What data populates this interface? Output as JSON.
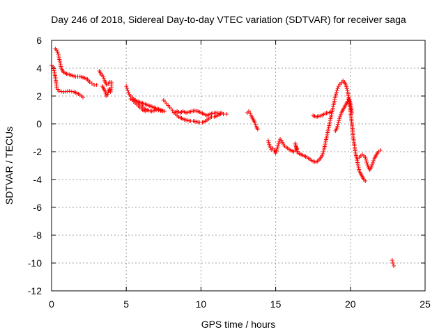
{
  "chart_data": {
    "type": "scatter",
    "title": "Day 246 of 2018, Sidereal Day-to-day VTEC variation (SDTVAR) for receiver saga",
    "xlabel": "GPS time / hours",
    "ylabel": "SDTVAR / TECUs",
    "xlim": [
      0,
      25
    ],
    "ylim": [
      -12,
      6
    ],
    "xticks": [
      0,
      5,
      10,
      15,
      20,
      25
    ],
    "yticks": [
      -12,
      -10,
      -8,
      -6,
      -4,
      -2,
      0,
      2,
      4,
      6
    ],
    "grid": true,
    "marker": "+",
    "color": "#ff0000",
    "series": [
      {
        "name": "SDTVAR",
        "segments": [
          [
            [
              0.0,
              4.2
            ],
            [
              0.1,
              4.1
            ],
            [
              0.2,
              3.7
            ],
            [
              0.3,
              3.0
            ],
            [
              0.35,
              2.6
            ],
            [
              0.5,
              2.35
            ],
            [
              0.8,
              2.3
            ],
            [
              1.2,
              2.35
            ],
            [
              1.5,
              2.3
            ],
            [
              1.8,
              2.15
            ],
            [
              2.0,
              2.0
            ],
            [
              2.1,
              1.9
            ]
          ],
          [
            [
              0.25,
              5.4
            ],
            [
              0.35,
              5.3
            ],
            [
              0.45,
              5.0
            ],
            [
              0.55,
              4.5
            ],
            [
              0.65,
              4.0
            ],
            [
              0.8,
              3.7
            ],
            [
              1.0,
              3.6
            ],
            [
              1.3,
              3.5
            ],
            [
              1.6,
              3.4
            ],
            [
              1.9,
              3.4
            ],
            [
              2.2,
              3.3
            ],
            [
              2.4,
              3.2
            ],
            [
              2.55,
              3.0
            ],
            [
              2.7,
              2.9
            ],
            [
              2.85,
              2.8
            ],
            [
              3.0,
              2.8
            ]
          ],
          [
            [
              3.2,
              3.8
            ],
            [
              3.3,
              3.6
            ],
            [
              3.45,
              3.4
            ],
            [
              3.55,
              3.1
            ],
            [
              3.7,
              2.8
            ],
            [
              3.8,
              2.9
            ],
            [
              3.9,
              3.0
            ],
            [
              4.0,
              3.0
            ],
            [
              4.0,
              2.6
            ],
            [
              3.95,
              2.3
            ],
            [
              3.85,
              2.5
            ],
            [
              3.75,
              2.1
            ],
            [
              3.65,
              2.0
            ],
            [
              3.6,
              2.3
            ],
            [
              3.5,
              2.5
            ],
            [
              3.4,
              2.7
            ]
          ],
          [
            [
              5.0,
              2.7
            ],
            [
              5.1,
              2.4
            ],
            [
              5.2,
              2.1
            ],
            [
              5.4,
              1.9
            ],
            [
              5.6,
              1.7
            ],
            [
              5.8,
              1.5
            ],
            [
              6.0,
              1.3
            ],
            [
              6.2,
              1.1
            ],
            [
              6.4,
              1.0
            ],
            [
              6.7,
              0.9
            ],
            [
              7.0,
              1.0
            ],
            [
              7.3,
              0.95
            ],
            [
              7.55,
              0.9
            ],
            [
              5.3,
              1.8
            ],
            [
              5.5,
              1.6
            ],
            [
              5.7,
              1.4
            ],
            [
              5.9,
              1.2
            ],
            [
              6.1,
              1.0
            ],
            [
              6.3,
              0.9
            ]
          ],
          [
            [
              7.5,
              1.7
            ],
            [
              7.7,
              1.45
            ],
            [
              7.9,
              1.2
            ],
            [
              8.1,
              0.95
            ],
            [
              8.3,
              0.7
            ],
            [
              8.5,
              0.5
            ],
            [
              8.7,
              0.4
            ],
            [
              8.9,
              0.3
            ],
            [
              9.1,
              0.25
            ],
            [
              9.3,
              0.2
            ],
            [
              9.5,
              0.2
            ],
            [
              9.7,
              0.15
            ],
            [
              9.9,
              0.1
            ],
            [
              10.1,
              0.1
            ],
            [
              10.3,
              0.2
            ],
            [
              10.5,
              0.35
            ],
            [
              10.7,
              0.5
            ],
            [
              10.9,
              0.5
            ],
            [
              11.1,
              0.6
            ],
            [
              11.3,
              0.7
            ],
            [
              11.5,
              0.7
            ],
            [
              11.7,
              0.7
            ]
          ],
          [
            [
              8.2,
              0.8
            ],
            [
              8.4,
              0.9
            ],
            [
              8.6,
              0.8
            ],
            [
              8.8,
              0.9
            ],
            [
              9.0,
              0.8
            ],
            [
              9.2,
              0.85
            ],
            [
              9.4,
              0.9
            ],
            [
              9.6,
              0.95
            ],
            [
              9.8,
              0.9
            ],
            [
              10.0,
              0.8
            ],
            [
              10.2,
              0.7
            ],
            [
              10.4,
              0.6
            ],
            [
              10.6,
              0.7
            ],
            [
              10.8,
              0.75
            ],
            [
              11.0,
              0.8
            ],
            [
              11.2,
              0.75
            ],
            [
              11.4,
              0.8
            ]
          ],
          [
            [
              13.1,
              0.8
            ],
            [
              13.2,
              0.9
            ],
            [
              13.3,
              0.75
            ],
            [
              13.4,
              0.5
            ],
            [
              13.5,
              0.3
            ],
            [
              13.6,
              0.1
            ],
            [
              13.7,
              -0.2
            ],
            [
              13.8,
              -0.4
            ]
          ],
          [
            [
              14.5,
              -1.2
            ],
            [
              14.6,
              -1.6
            ],
            [
              14.7,
              -1.85
            ],
            [
              14.8,
              -1.75
            ],
            [
              14.9,
              -1.9
            ],
            [
              15.0,
              -2.1
            ],
            [
              15.1,
              -1.8
            ],
            [
              15.2,
              -1.4
            ],
            [
              15.3,
              -1.1
            ],
            [
              15.4,
              -1.2
            ],
            [
              15.5,
              -1.45
            ],
            [
              15.6,
              -1.6
            ],
            [
              15.8,
              -1.75
            ],
            [
              16.0,
              -1.9
            ],
            [
              16.2,
              -2.0
            ],
            [
              16.4,
              -1.8
            ],
            [
              16.3,
              -1.4
            ],
            [
              16.5,
              -2.1
            ],
            [
              16.7,
              -2.2
            ],
            [
              16.9,
              -2.3
            ],
            [
              17.1,
              -2.4
            ],
            [
              17.3,
              -2.55
            ],
            [
              17.5,
              -2.7
            ],
            [
              17.7,
              -2.75
            ],
            [
              17.9,
              -2.6
            ],
            [
              18.1,
              -2.3
            ],
            [
              18.2,
              -2.0
            ],
            [
              18.3,
              -1.5
            ],
            [
              18.4,
              -1.0
            ],
            [
              18.5,
              -0.5
            ],
            [
              18.6,
              0.0
            ],
            [
              18.7,
              0.5
            ],
            [
              18.8,
              1.0
            ],
            [
              18.9,
              1.5
            ],
            [
              19.0,
              2.0
            ],
            [
              19.1,
              2.4
            ],
            [
              19.2,
              2.7
            ],
            [
              19.3,
              2.85
            ],
            [
              19.4,
              2.95
            ],
            [
              19.5,
              3.1
            ],
            [
              19.6,
              3.0
            ],
            [
              19.7,
              2.8
            ],
            [
              19.8,
              2.4
            ],
            [
              19.9,
              1.8
            ],
            [
              20.0,
              1.0
            ],
            [
              20.1,
              0.0
            ],
            [
              20.2,
              -1.0
            ],
            [
              20.3,
              -1.8
            ],
            [
              20.4,
              -2.4
            ],
            [
              20.5,
              -2.9
            ],
            [
              20.6,
              -3.4
            ],
            [
              20.7,
              -3.6
            ],
            [
              20.8,
              -3.8
            ],
            [
              20.9,
              -4.0
            ],
            [
              21.0,
              -4.1
            ]
          ],
          [
            [
              17.5,
              0.6
            ],
            [
              17.7,
              0.5
            ],
            [
              17.9,
              0.55
            ],
            [
              18.1,
              0.6
            ],
            [
              18.3,
              0.75
            ],
            [
              18.5,
              0.8
            ],
            [
              18.7,
              0.85
            ]
          ],
          [
            [
              19.0,
              -0.5
            ],
            [
              19.1,
              -0.3
            ],
            [
              19.2,
              0.1
            ],
            [
              19.3,
              0.5
            ],
            [
              19.4,
              0.8
            ],
            [
              19.5,
              1.0
            ],
            [
              19.6,
              1.2
            ],
            [
              19.7,
              1.4
            ],
            [
              19.8,
              1.6
            ],
            [
              19.9,
              1.9
            ],
            [
              20.0,
              1.5
            ],
            [
              20.1,
              0.8
            ]
          ],
          [
            [
              20.5,
              -2.5
            ],
            [
              20.7,
              -2.3
            ],
            [
              20.8,
              -2.2
            ],
            [
              20.9,
              -2.3
            ],
            [
              21.0,
              -2.4
            ],
            [
              21.1,
              -2.8
            ],
            [
              21.2,
              -3.1
            ],
            [
              21.3,
              -3.3
            ],
            [
              21.4,
              -3.1
            ],
            [
              21.5,
              -2.8
            ],
            [
              21.6,
              -2.5
            ],
            [
              21.7,
              -2.3
            ],
            [
              21.8,
              -2.1
            ],
            [
              21.9,
              -2.0
            ],
            [
              22.0,
              -1.9
            ]
          ],
          [
            [
              22.8,
              -9.8
            ],
            [
              22.85,
              -10.0
            ],
            [
              22.9,
              -10.2
            ]
          ]
        ]
      }
    ]
  }
}
